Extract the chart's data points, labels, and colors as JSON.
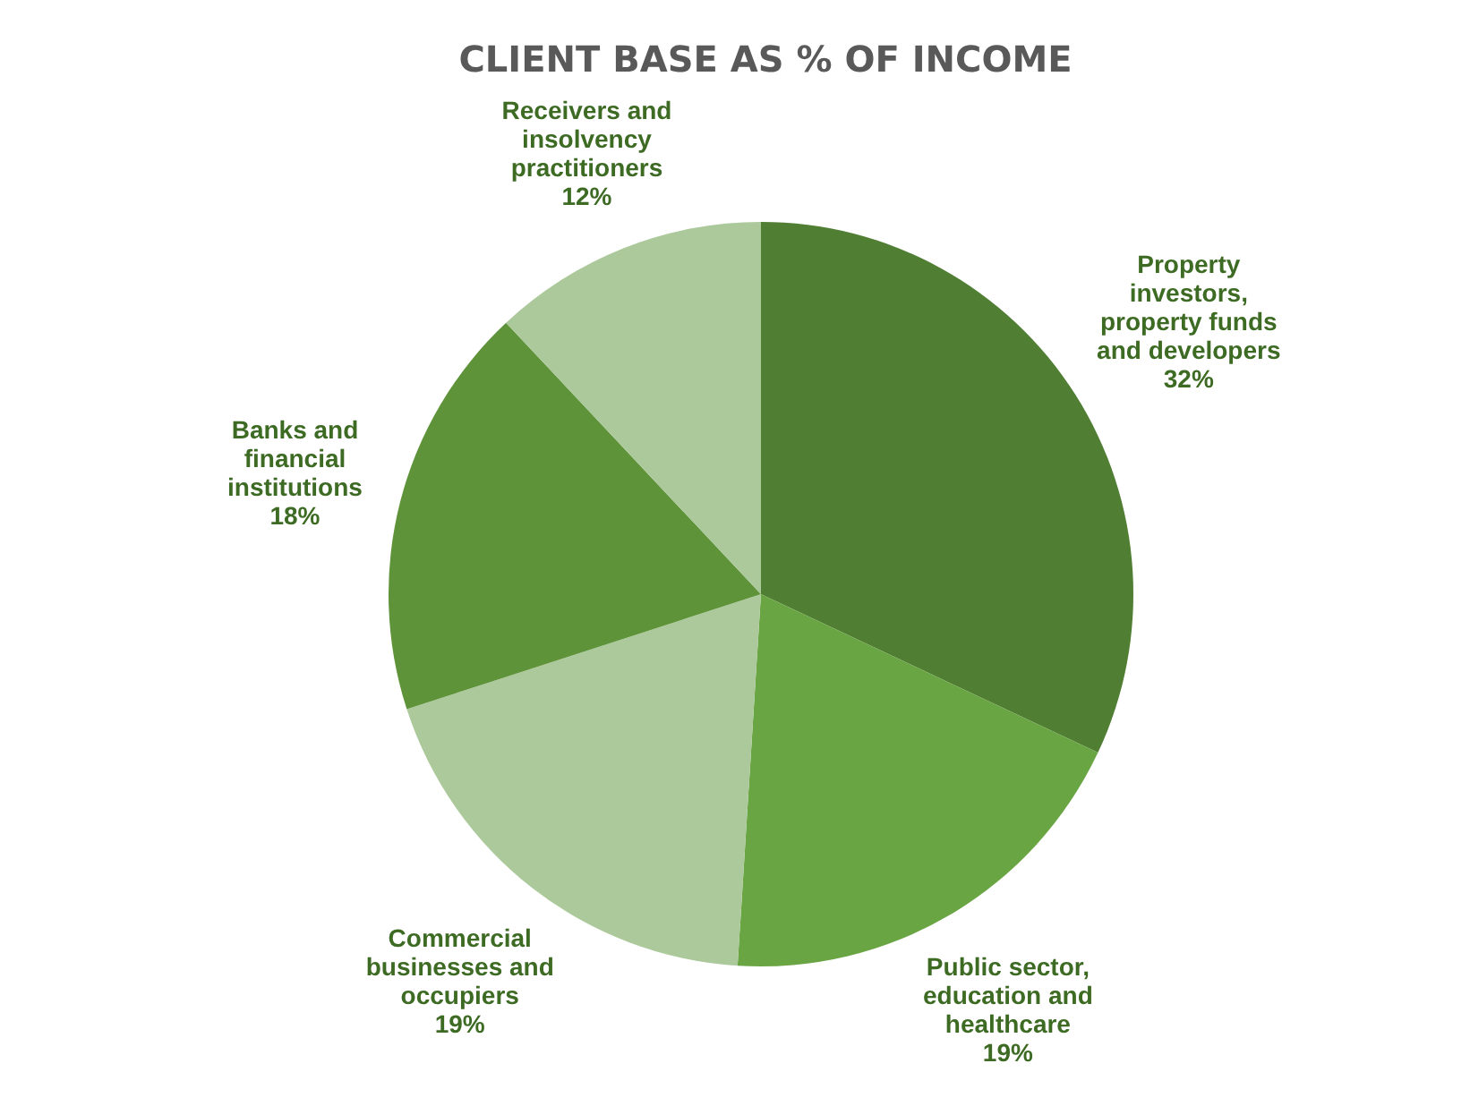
{
  "chart_data": {
    "type": "pie",
    "title": "CLIENT BASE AS % OF INCOME",
    "categories": [
      "Property investors, property funds and developers",
      "Public sector, education and healthcare",
      "Commercial businesses and occupiers",
      "Banks and financial institutions",
      "Receivers and insolvency practitioners"
    ],
    "values": [
      32,
      19,
      19,
      18,
      12
    ],
    "value_labels": [
      "32%",
      "19%",
      "19%",
      "18%",
      "12%"
    ],
    "colors": [
      "#507e33",
      "#6aa543",
      "#acc99b",
      "#5e9339",
      "#acc99b"
    ]
  }
}
